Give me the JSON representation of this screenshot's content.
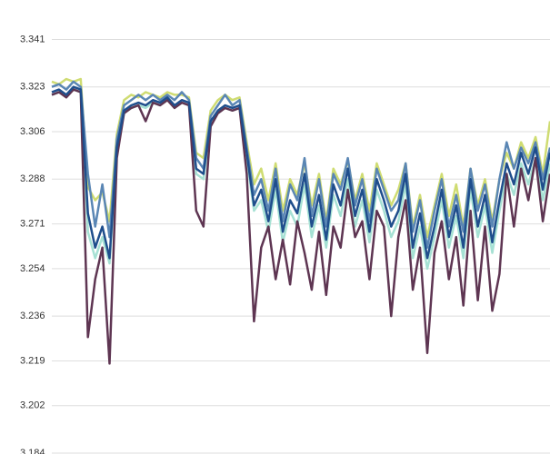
{
  "chart_data": {
    "type": "line",
    "categories": [
      null,
      null,
      null,
      null,
      null,
      null,
      null,
      null,
      null,
      null,
      null,
      null,
      null,
      null,
      null,
      null,
      null,
      null,
      null,
      null,
      null,
      null,
      null,
      null,
      null,
      null,
      null,
      null,
      null,
      null,
      null,
      null,
      null,
      null,
      null,
      null,
      null,
      null,
      null,
      null,
      null,
      null,
      null,
      null,
      null,
      null,
      null,
      null,
      null,
      null,
      null,
      null,
      null,
      null,
      null,
      null,
      null,
      null,
      null,
      null,
      null,
      null,
      null,
      null,
      null,
      null,
      null,
      null,
      null,
      null
    ],
    "ylim": [
      3.184,
      3.356
    ],
    "yticks": [
      3.184,
      3.202,
      3.219,
      3.236,
      3.254,
      3.271,
      3.288,
      3.306,
      3.323,
      3.341
    ],
    "grid": true,
    "series": [
      {
        "color": "#a6e1d4",
        "values": [
          3.32,
          3.321,
          3.32,
          3.322,
          3.321,
          3.268,
          3.258,
          3.266,
          3.256,
          3.298,
          3.313,
          3.315,
          3.316,
          3.315,
          3.317,
          3.316,
          3.318,
          3.315,
          3.317,
          3.316,
          3.29,
          3.288,
          3.309,
          3.313,
          3.315,
          3.314,
          3.315,
          3.296,
          3.276,
          3.28,
          3.268,
          3.284,
          3.264,
          3.276,
          3.27,
          3.286,
          3.266,
          3.278,
          3.262,
          3.282,
          3.274,
          3.288,
          3.27,
          3.28,
          3.264,
          3.284,
          3.276,
          3.266,
          3.272,
          3.286,
          3.258,
          3.27,
          3.254,
          3.266,
          3.28,
          3.262,
          3.274,
          3.258,
          3.284,
          3.266,
          3.278,
          3.26,
          3.276,
          3.29,
          3.282,
          3.294,
          3.286,
          3.296,
          3.28,
          3.294
        ]
      },
      {
        "color": "#cfdc72",
        "values": [
          3.325,
          3.324,
          3.326,
          3.325,
          3.326,
          3.285,
          3.28,
          3.283,
          3.272,
          3.305,
          3.318,
          3.32,
          3.319,
          3.321,
          3.32,
          3.319,
          3.321,
          3.32,
          3.32,
          3.319,
          3.298,
          3.296,
          3.314,
          3.318,
          3.32,
          3.318,
          3.319,
          3.302,
          3.286,
          3.292,
          3.28,
          3.294,
          3.276,
          3.288,
          3.282,
          3.294,
          3.278,
          3.29,
          3.272,
          3.292,
          3.286,
          3.295,
          3.28,
          3.29,
          3.276,
          3.294,
          3.286,
          3.278,
          3.284,
          3.294,
          3.27,
          3.282,
          3.266,
          3.278,
          3.29,
          3.274,
          3.286,
          3.27,
          3.292,
          3.278,
          3.288,
          3.272,
          3.288,
          3.298,
          3.292,
          3.302,
          3.296,
          3.304,
          3.29,
          3.31
        ]
      },
      {
        "color": "#5a86b4",
        "values": [
          3.323,
          3.324,
          3.322,
          3.325,
          3.323,
          3.29,
          3.27,
          3.286,
          3.266,
          3.303,
          3.316,
          3.318,
          3.32,
          3.318,
          3.32,
          3.318,
          3.32,
          3.318,
          3.321,
          3.318,
          3.296,
          3.292,
          3.312,
          3.316,
          3.32,
          3.316,
          3.318,
          3.3,
          3.282,
          3.288,
          3.276,
          3.292,
          3.272,
          3.286,
          3.28,
          3.296,
          3.274,
          3.288,
          3.27,
          3.29,
          3.284,
          3.296,
          3.278,
          3.288,
          3.272,
          3.292,
          3.284,
          3.276,
          3.28,
          3.294,
          3.268,
          3.28,
          3.262,
          3.276,
          3.288,
          3.27,
          3.282,
          3.268,
          3.292,
          3.276,
          3.286,
          3.27,
          3.288,
          3.302,
          3.292,
          3.3,
          3.294,
          3.302,
          3.288,
          3.3
        ]
      },
      {
        "color": "#5e3552",
        "values": [
          3.32,
          3.321,
          3.319,
          3.322,
          3.321,
          3.228,
          3.25,
          3.262,
          3.218,
          3.296,
          3.313,
          3.315,
          3.316,
          3.31,
          3.317,
          3.316,
          3.318,
          3.315,
          3.317,
          3.316,
          3.276,
          3.27,
          3.308,
          3.313,
          3.315,
          3.314,
          3.315,
          3.29,
          3.234,
          3.262,
          3.27,
          3.25,
          3.265,
          3.248,
          3.272,
          3.26,
          3.246,
          3.268,
          3.244,
          3.27,
          3.262,
          3.284,
          3.266,
          3.272,
          3.25,
          3.276,
          3.27,
          3.236,
          3.266,
          3.28,
          3.246,
          3.262,
          3.222,
          3.26,
          3.272,
          3.25,
          3.266,
          3.24,
          3.276,
          3.242,
          3.27,
          3.238,
          3.252,
          3.29,
          3.27,
          3.292,
          3.28,
          3.296,
          3.272,
          3.29
        ]
      },
      {
        "color": "#1f4e8c",
        "values": [
          3.321,
          3.322,
          3.32,
          3.323,
          3.322,
          3.275,
          3.262,
          3.27,
          3.258,
          3.3,
          3.314,
          3.316,
          3.317,
          3.316,
          3.318,
          3.317,
          3.319,
          3.316,
          3.318,
          3.317,
          3.292,
          3.29,
          3.31,
          3.314,
          3.316,
          3.315,
          3.316,
          3.298,
          3.278,
          3.284,
          3.272,
          3.288,
          3.268,
          3.28,
          3.275,
          3.29,
          3.27,
          3.282,
          3.265,
          3.286,
          3.278,
          3.292,
          3.274,
          3.284,
          3.268,
          3.288,
          3.28,
          3.27,
          3.276,
          3.29,
          3.262,
          3.275,
          3.258,
          3.27,
          3.284,
          3.266,
          3.278,
          3.262,
          3.288,
          3.27,
          3.282,
          3.264,
          3.28,
          3.294,
          3.286,
          3.298,
          3.29,
          3.3,
          3.284,
          3.298
        ]
      }
    ]
  }
}
